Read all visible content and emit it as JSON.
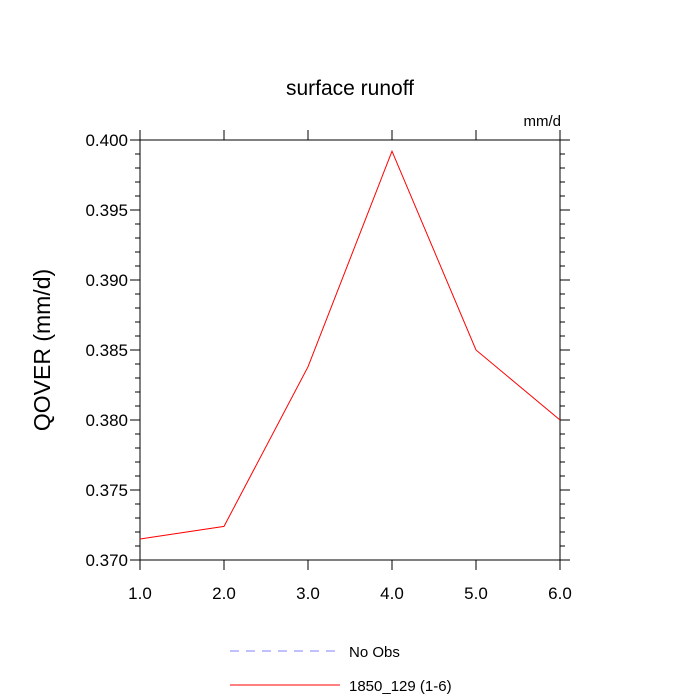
{
  "chart_data": {
    "type": "line",
    "title": "surface runoff",
    "units_label": "mm/d",
    "ylabel": "QOVER  (mm/d)",
    "xlabel": "",
    "xlim": [
      1.0,
      6.0
    ],
    "ylim": [
      0.37,
      0.4
    ],
    "x_ticks": [
      "1.0",
      "2.0",
      "3.0",
      "4.0",
      "5.0",
      "6.0"
    ],
    "y_ticks": [
      "0.370",
      "0.375",
      "0.380",
      "0.385",
      "0.390",
      "0.395",
      "0.400"
    ],
    "grid": false,
    "legend_position": "bottom",
    "series": [
      {
        "name": "No Obs",
        "color": "#8080ff",
        "dash": "dashed",
        "x": [],
        "values": []
      },
      {
        "name": "1850_129 (1-6)",
        "color": "#ff0000",
        "dash": "solid",
        "x": [
          1,
          2,
          3,
          4,
          5,
          6
        ],
        "values": [
          0.3715,
          0.3724,
          0.3838,
          0.3992,
          0.385,
          0.38
        ]
      }
    ]
  }
}
